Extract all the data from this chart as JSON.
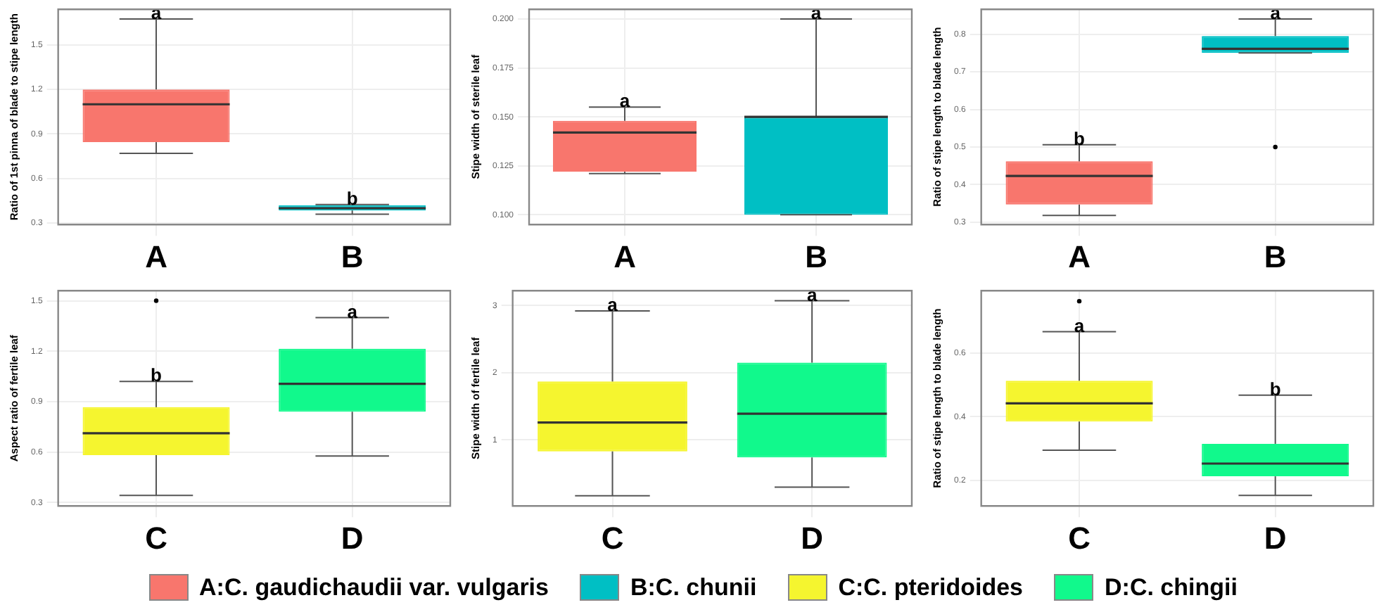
{
  "chart_data": [
    {
      "type": "box",
      "ylabel": "Ratio of 1st pinna of blade to stipe length",
      "categories": [
        "A",
        "B"
      ],
      "colors": [
        "#f8766d",
        "#00bfc4"
      ],
      "ylim": [
        0.29,
        1.74
      ],
      "yticks": [
        0.3,
        0.6,
        0.9,
        1.2,
        1.5
      ],
      "grid": true,
      "boxes": [
        {
          "low": 0.77,
          "q1": 0.845,
          "median": 1.1,
          "q3": 1.2,
          "high": 1.675
        },
        {
          "low": 0.36,
          "q1": 0.385,
          "median": 0.4,
          "q3": 0.42,
          "high": 0.425
        }
      ],
      "annotations": [
        {
          "text": "a",
          "x": "A",
          "y": 1.675
        },
        {
          "text": "b",
          "x": "B",
          "y": 0.425
        }
      ]
    },
    {
      "type": "box",
      "ylabel": "Stipe width of sterile leaf",
      "categories": [
        "A",
        "B"
      ],
      "colors": [
        "#f8766d",
        "#00bfc4"
      ],
      "ylim": [
        0.095,
        0.205
      ],
      "yticks": [
        {
          "value": 0.1,
          "label": "0.100"
        },
        {
          "value": 0.125,
          "label": "0.125"
        },
        {
          "value": 0.15,
          "label": "0.150"
        },
        {
          "value": 0.175,
          "label": "0.175"
        },
        {
          "value": 0.2,
          "label": "0.200"
        }
      ],
      "grid": true,
      "boxes": [
        {
          "low": 0.121,
          "q1": 0.122,
          "median": 0.142,
          "q3": 0.148,
          "high": 0.155
        },
        {
          "low": 0.1,
          "q1": 0.1,
          "median": 0.15,
          "q3": 0.15,
          "high": 0.2
        }
      ],
      "annotations": [
        {
          "text": "a",
          "x": "A",
          "y": 0.155
        },
        {
          "text": "a",
          "x": "B",
          "y": 0.2
        }
      ]
    },
    {
      "type": "box",
      "ylabel": "Ratio of stipe length to blade length",
      "categories": [
        "A",
        "B"
      ],
      "colors": [
        "#f8766d",
        "#00bfc4"
      ],
      "ylim": [
        0.294,
        0.866
      ],
      "yticks": [
        0.3,
        0.4,
        0.5,
        0.6,
        0.7,
        0.8
      ],
      "grid": true,
      "boxes": [
        {
          "low": 0.318,
          "q1": 0.347,
          "median": 0.423,
          "q3": 0.462,
          "high": 0.506
        },
        {
          "low": 0.75,
          "q1": 0.75,
          "median": 0.761,
          "q3": 0.795,
          "high": 0.84,
          "outliers": [
            0.5
          ]
        }
      ],
      "annotations": [
        {
          "text": "b",
          "x": "A",
          "y": 0.506
        },
        {
          "text": "a",
          "x": "B",
          "y": 0.84
        }
      ]
    },
    {
      "type": "box",
      "ylabel": "Aspect ratio of fertile leaf",
      "categories": [
        "C",
        "D"
      ],
      "colors": [
        "#f5f52f",
        "#11f98c"
      ],
      "ylim": [
        0.28,
        1.56
      ],
      "yticks": [
        0.3,
        0.6,
        0.9,
        1.2,
        1.5
      ],
      "grid": true,
      "boxes": [
        {
          "low": 0.343,
          "q1": 0.582,
          "median": 0.712,
          "q3": 0.867,
          "high": 1.02,
          "outliers": [
            1.5
          ]
        },
        {
          "low": 0.577,
          "q1": 0.84,
          "median": 1.006,
          "q3": 1.215,
          "high": 1.4
        }
      ],
      "annotations": [
        {
          "text": "b",
          "x": "C",
          "y": 1.02
        },
        {
          "text": "a",
          "x": "D",
          "y": 1.4
        }
      ]
    },
    {
      "type": "box",
      "ylabel": "Stipe width of fertile leaf",
      "categories": [
        "C",
        "D"
      ],
      "colors": [
        "#f5f52f",
        "#11f98c"
      ],
      "ylim": [
        0.02,
        3.22
      ],
      "yticks": [
        1,
        2,
        3
      ],
      "grid": true,
      "boxes": [
        {
          "low": 0.17,
          "q1": 0.83,
          "median": 1.26,
          "q3": 1.87,
          "high": 2.92
        },
        {
          "low": 0.3,
          "q1": 0.74,
          "median": 1.39,
          "q3": 2.15,
          "high": 3.07
        }
      ],
      "annotations": [
        {
          "text": "a",
          "x": "C",
          "y": 2.92
        },
        {
          "text": "a",
          "x": "D",
          "y": 3.07
        }
      ]
    },
    {
      "type": "box",
      "ylabel": "Ratio of stipe length to blade length",
      "categories": [
        "C",
        "D"
      ],
      "colors": [
        "#f5f52f",
        "#11f98c"
      ],
      "ylim": [
        0.12,
        0.796
      ],
      "yticks": [
        0.2,
        0.4,
        0.6
      ],
      "grid": true,
      "boxes": [
        {
          "low": 0.295,
          "q1": 0.385,
          "median": 0.442,
          "q3": 0.513,
          "high": 0.667,
          "outliers": [
            0.763
          ]
        },
        {
          "low": 0.153,
          "q1": 0.213,
          "median": 0.253,
          "q3": 0.315,
          "high": 0.468
        }
      ],
      "annotations": [
        {
          "text": "a",
          "x": "C",
          "y": 0.667
        },
        {
          "text": "b",
          "x": "D",
          "y": 0.468
        }
      ]
    },
    {
      "type": "other",
      "categories": [
        "A:C. gaudichaudii var. vulgaris",
        "B:C. chunii",
        "C:C. pteridoides",
        "D:C. chingii"
      ],
      "colors": [
        "#f8766d",
        "#00bfc4",
        "#f5f52f",
        "#11f98c"
      ]
    }
  ]
}
